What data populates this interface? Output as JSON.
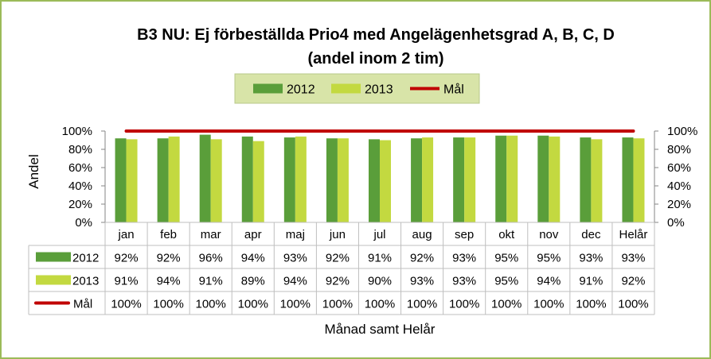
{
  "chart_data": {
    "type": "bar",
    "title_lines": [
      "B3 NU: Ej förbeställda Prio4 med Angelägenhetsgrad A, B, C, D",
      "(andel inom 2 tim)"
    ],
    "categories": [
      "jan",
      "feb",
      "mar",
      "apr",
      "maj",
      "jun",
      "jul",
      "aug",
      "sep",
      "okt",
      "nov",
      "dec",
      "Helår"
    ],
    "series": [
      {
        "name": "2012",
        "kind": "bar",
        "color": "#5a9e3a",
        "values": [
          92,
          92,
          96,
          94,
          93,
          92,
          91,
          92,
          93,
          95,
          95,
          93,
          93
        ],
        "labels": [
          "92%",
          "92%",
          "96%",
          "94%",
          "93%",
          "92%",
          "91%",
          "92%",
          "93%",
          "95%",
          "95%",
          "93%",
          "93%"
        ]
      },
      {
        "name": "2013",
        "kind": "bar",
        "color": "#c3d940",
        "values": [
          91,
          94,
          91,
          89,
          94,
          92,
          90,
          93,
          93,
          95,
          94,
          91,
          92
        ],
        "labels": [
          "91%",
          "94%",
          "91%",
          "89%",
          "94%",
          "92%",
          "90%",
          "93%",
          "93%",
          "95%",
          "94%",
          "91%",
          "92%"
        ]
      },
      {
        "name": "Mål",
        "kind": "line",
        "color": "#c00000",
        "values": [
          100,
          100,
          100,
          100,
          100,
          100,
          100,
          100,
          100,
          100,
          100,
          100,
          100
        ],
        "labels": [
          "100%",
          "100%",
          "100%",
          "100%",
          "100%",
          "100%",
          "100%",
          "100%",
          "100%",
          "100%",
          "100%",
          "100%",
          "100%"
        ]
      }
    ],
    "ylabel": "Andel",
    "xlabel": "Månad samt Helår",
    "ylim": [
      0,
      100
    ],
    "yticks": [
      0,
      20,
      40,
      60,
      80,
      100
    ],
    "ytick_labels": [
      "0%",
      "20%",
      "40%",
      "60%",
      "80%",
      "100%"
    ],
    "secondary_ytick_labels": [
      "0%",
      "20%",
      "40%",
      "60%",
      "80%",
      "100%"
    ],
    "legend_position": "top-center",
    "legend_background": "#d8e4a8",
    "frame_color": "#9bbb59",
    "data_table": true,
    "grid": false
  }
}
